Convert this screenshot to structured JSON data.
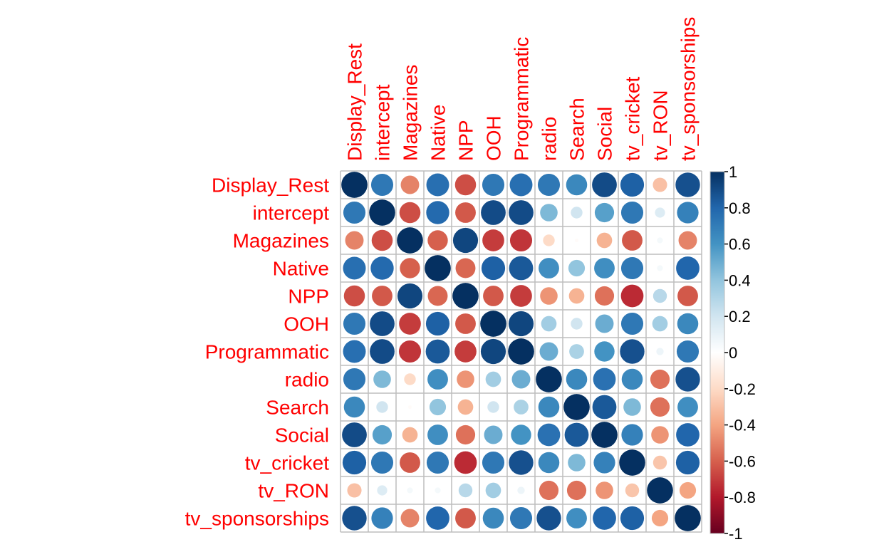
{
  "chart_data": {
    "type": "heatmap",
    "variables": [
      "Display_Rest",
      "intercept",
      "Magazines",
      "Native",
      "NPP",
      "OOH",
      "Programmatic",
      "radio",
      "Search",
      "Social",
      "tv_cricket",
      "tv_RON",
      "tv_sponsorships"
    ],
    "matrix": [
      [
        1.0,
        0.72,
        -0.5,
        0.76,
        -0.65,
        0.72,
        0.76,
        0.72,
        0.65,
        0.9,
        0.82,
        -0.3,
        0.88
      ],
      [
        0.72,
        1.0,
        -0.65,
        0.78,
        -0.62,
        0.9,
        0.9,
        0.45,
        0.2,
        0.55,
        0.72,
        0.15,
        0.68
      ],
      [
        -0.5,
        -0.65,
        1.0,
        -0.6,
        0.92,
        -0.7,
        -0.72,
        -0.2,
        -0.02,
        -0.35,
        -0.62,
        0.05,
        -0.5
      ],
      [
        0.76,
        0.78,
        -0.6,
        1.0,
        -0.58,
        0.82,
        0.85,
        0.62,
        0.4,
        0.62,
        0.72,
        0.05,
        0.8
      ],
      [
        -0.65,
        -0.62,
        0.92,
        -0.58,
        1.0,
        -0.62,
        -0.7,
        -0.45,
        -0.35,
        -0.55,
        -0.75,
        0.28,
        -0.62
      ],
      [
        0.72,
        0.9,
        -0.7,
        0.82,
        -0.62,
        1.0,
        0.92,
        0.35,
        0.2,
        0.5,
        0.72,
        0.35,
        0.65
      ],
      [
        0.76,
        0.9,
        -0.72,
        0.85,
        -0.7,
        0.92,
        1.0,
        0.5,
        0.32,
        0.6,
        0.88,
        0.08,
        0.72
      ],
      [
        0.72,
        0.45,
        -0.2,
        0.62,
        -0.45,
        0.35,
        0.5,
        1.0,
        0.65,
        0.75,
        0.65,
        -0.55,
        0.88
      ],
      [
        0.65,
        0.2,
        -0.02,
        0.4,
        -0.35,
        0.2,
        0.32,
        0.65,
        1.0,
        0.85,
        0.45,
        -0.55,
        0.62
      ],
      [
        0.9,
        0.55,
        -0.35,
        0.62,
        -0.55,
        0.5,
        0.6,
        0.75,
        0.85,
        1.0,
        0.68,
        -0.45,
        0.8
      ],
      [
        0.82,
        0.72,
        -0.62,
        0.72,
        -0.75,
        0.72,
        0.88,
        0.65,
        0.45,
        0.68,
        1.0,
        -0.28,
        0.82
      ],
      [
        -0.3,
        0.15,
        0.05,
        0.05,
        0.28,
        0.35,
        0.08,
        -0.55,
        -0.55,
        -0.45,
        -0.28,
        1.0,
        -0.4
      ],
      [
        0.88,
        0.68,
        -0.5,
        0.8,
        -0.62,
        0.65,
        0.72,
        0.88,
        0.62,
        0.8,
        0.82,
        -0.4,
        1.0
      ]
    ],
    "color_range": [
      -1,
      1
    ],
    "colorbar_ticks": [
      "1",
      "0.8",
      "0.6",
      "0.4",
      "0.2",
      "0",
      "-0.2",
      "-0.4",
      "-0.6",
      "-0.8",
      "-1"
    ],
    "colorbar_tick_values": [
      1,
      0.8,
      0.6,
      0.4,
      0.2,
      0,
      -0.2,
      -0.4,
      -0.6,
      -0.8,
      -1
    ],
    "label_color": "#FF0000",
    "colors": {
      "negative_end": "#67001F",
      "neutral": "#FFFFFF",
      "positive_end": "#053061",
      "grid": "#BEBEBE"
    },
    "shape": "circle",
    "legend_placement": "right"
  }
}
